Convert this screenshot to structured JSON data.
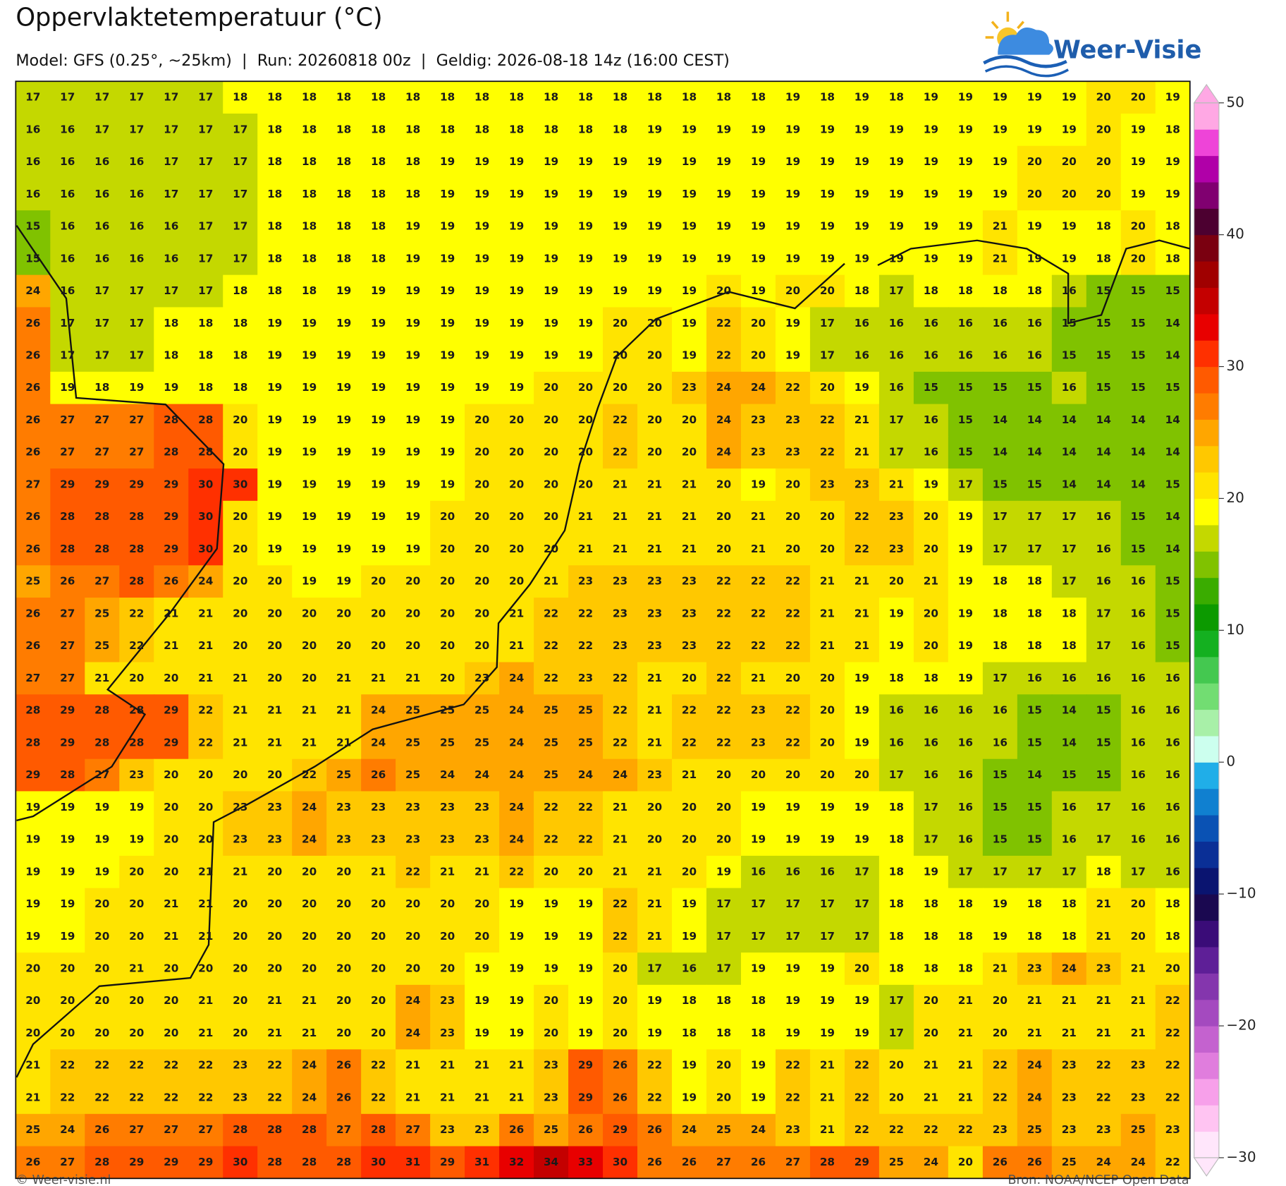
{
  "header": {
    "title": "Oppervlaktetemperatuur (°C)",
    "subtitle": "Model: GFS (0.25°, ~25km)  |  Run: 20260818 00z  |  Geldig: 2026-08-18 14z (16:00 CEST)",
    "logo": "Weer-Visie"
  },
  "footer": {
    "left": "© Weer-visie.nl",
    "right": "Bron: NOAA/NCEP Open Data"
  },
  "colorbar": {
    "lim": [
      -30,
      50
    ],
    "ticks": [
      50,
      40,
      30,
      20,
      10,
      0,
      {
        "value": -10,
        "label": "−10"
      },
      {
        "value": -20,
        "label": "−20"
      },
      {
        "value": -30,
        "label": "−30"
      }
    ],
    "colors": [
      "#ffe6fb",
      "#ffc4f2",
      "#f7a0ea",
      "#e07ddd",
      "#c462cf",
      "#a44abf",
      "#8436ad",
      "#5e1f97",
      "#3a0c78",
      "#1a0850",
      "#0a1470",
      "#0a2f96",
      "#0a52b4",
      "#1080d0",
      "#20aee8",
      "#ccffee",
      "#a8f0a8",
      "#72dd72",
      "#44c850",
      "#14b020",
      "#0c9a00",
      "#3aac00",
      "#80c200",
      "#c4d800",
      "#ffff00",
      "#ffe400",
      "#ffc800",
      "#ffa600",
      "#ff7c00",
      "#ff5a00",
      "#ff3000",
      "#e80000",
      "#c40000",
      "#a00000",
      "#7a0010",
      "#4c0030",
      "#800070",
      "#b000a8",
      "#ee44d8",
      "#ffa8e4"
    ]
  },
  "grid": {
    "rows": [
      [
        17,
        17,
        17,
        17,
        17,
        17,
        18,
        18,
        18,
        18,
        18,
        18,
        18,
        18,
        18,
        18,
        18,
        18,
        18,
        18,
        18,
        18,
        19,
        18,
        19,
        18,
        19,
        19,
        19,
        19,
        19,
        20,
        20,
        19
      ],
      [
        16,
        16,
        17,
        17,
        17,
        17,
        17,
        18,
        18,
        18,
        18,
        18,
        18,
        18,
        18,
        18,
        18,
        18,
        19,
        19,
        19,
        19,
        19,
        19,
        19,
        19,
        19,
        19,
        19,
        19,
        19,
        20,
        19,
        18
      ],
      [
        16,
        16,
        16,
        16,
        17,
        17,
        17,
        18,
        18,
        18,
        18,
        18,
        19,
        19,
        19,
        19,
        19,
        19,
        19,
        19,
        19,
        19,
        19,
        19,
        19,
        19,
        19,
        19,
        19,
        20,
        20,
        20,
        19,
        19
      ],
      [
        16,
        16,
        16,
        16,
        17,
        17,
        17,
        18,
        18,
        18,
        18,
        18,
        19,
        19,
        19,
        19,
        19,
        19,
        19,
        19,
        19,
        19,
        19,
        19,
        19,
        19,
        19,
        19,
        19,
        20,
        20,
        20,
        19,
        19
      ],
      [
        15,
        16,
        16,
        16,
        16,
        17,
        17,
        18,
        18,
        18,
        18,
        19,
        19,
        19,
        19,
        19,
        19,
        19,
        19,
        19,
        19,
        19,
        19,
        19,
        19,
        19,
        19,
        19,
        21,
        19,
        19,
        18,
        20,
        18
      ],
      [
        15,
        16,
        16,
        16,
        16,
        17,
        17,
        18,
        18,
        18,
        18,
        19,
        19,
        19,
        19,
        19,
        19,
        19,
        19,
        19,
        19,
        19,
        19,
        19,
        19,
        19,
        19,
        19,
        21,
        19,
        19,
        18,
        20,
        18
      ],
      [
        24,
        16,
        17,
        17,
        17,
        17,
        18,
        18,
        18,
        19,
        19,
        19,
        19,
        19,
        19,
        19,
        19,
        19,
        19,
        19,
        20,
        19,
        20,
        20,
        18,
        17,
        18,
        18,
        18,
        18,
        16,
        15,
        15,
        15
      ],
      [
        26,
        17,
        17,
        17,
        18,
        18,
        18,
        19,
        19,
        19,
        19,
        19,
        19,
        19,
        19,
        19,
        19,
        20,
        20,
        19,
        22,
        20,
        19,
        17,
        16,
        16,
        16,
        16,
        16,
        16,
        15,
        15,
        15,
        14
      ],
      [
        26,
        17,
        17,
        17,
        18,
        18,
        18,
        19,
        19,
        19,
        19,
        19,
        19,
        19,
        19,
        19,
        19,
        20,
        20,
        19,
        22,
        20,
        19,
        17,
        16,
        16,
        16,
        16,
        16,
        16,
        15,
        15,
        15,
        14
      ],
      [
        26,
        19,
        18,
        19,
        19,
        18,
        18,
        19,
        19,
        19,
        19,
        19,
        19,
        19,
        19,
        20,
        20,
        20,
        20,
        23,
        24,
        24,
        22,
        20,
        19,
        16,
        15,
        15,
        15,
        15,
        16,
        15,
        15,
        15
      ],
      [
        26,
        27,
        27,
        27,
        28,
        28,
        20,
        19,
        19,
        19,
        19,
        19,
        19,
        20,
        20,
        20,
        20,
        22,
        20,
        20,
        24,
        23,
        23,
        22,
        21,
        17,
        16,
        15,
        14,
        14,
        14,
        14,
        14,
        14
      ],
      [
        26,
        27,
        27,
        27,
        28,
        28,
        20,
        19,
        19,
        19,
        19,
        19,
        19,
        20,
        20,
        20,
        20,
        22,
        20,
        20,
        24,
        23,
        23,
        22,
        21,
        17,
        16,
        15,
        14,
        14,
        14,
        14,
        14,
        14
      ],
      [
        27,
        29,
        29,
        29,
        29,
        30,
        30,
        19,
        19,
        19,
        19,
        19,
        19,
        20,
        20,
        20,
        20,
        21,
        21,
        21,
        20,
        19,
        20,
        23,
        23,
        21,
        19,
        17,
        15,
        15,
        14,
        14,
        14,
        15
      ],
      [
        26,
        28,
        28,
        28,
        29,
        30,
        20,
        19,
        19,
        19,
        19,
        19,
        20,
        20,
        20,
        20,
        21,
        21,
        21,
        21,
        20,
        21,
        20,
        20,
        22,
        23,
        20,
        19,
        17,
        17,
        17,
        16,
        15,
        14
      ],
      [
        26,
        28,
        28,
        28,
        29,
        30,
        20,
        19,
        19,
        19,
        19,
        19,
        20,
        20,
        20,
        20,
        21,
        21,
        21,
        21,
        20,
        21,
        20,
        20,
        22,
        23,
        20,
        19,
        17,
        17,
        17,
        16,
        15,
        14
      ],
      [
        25,
        26,
        27,
        28,
        26,
        24,
        20,
        20,
        19,
        19,
        20,
        20,
        20,
        20,
        20,
        21,
        23,
        23,
        23,
        23,
        22,
        22,
        22,
        21,
        21,
        20,
        21,
        19,
        18,
        18,
        17,
        16,
        16,
        15
      ],
      [
        26,
        27,
        25,
        22,
        21,
        21,
        20,
        20,
        20,
        20,
        20,
        20,
        20,
        20,
        21,
        22,
        22,
        23,
        23,
        23,
        22,
        22,
        22,
        21,
        21,
        19,
        20,
        19,
        18,
        18,
        18,
        17,
        16,
        15
      ],
      [
        26,
        27,
        25,
        22,
        21,
        21,
        20,
        20,
        20,
        20,
        20,
        20,
        20,
        20,
        21,
        22,
        22,
        23,
        23,
        23,
        22,
        22,
        22,
        21,
        21,
        19,
        20,
        19,
        18,
        18,
        18,
        17,
        16,
        15
      ],
      [
        27,
        27,
        21,
        20,
        20,
        21,
        21,
        20,
        20,
        21,
        21,
        21,
        20,
        23,
        24,
        22,
        23,
        22,
        21,
        20,
        22,
        21,
        20,
        20,
        19,
        18,
        18,
        19,
        17,
        16,
        16,
        16,
        16,
        16
      ],
      [
        28,
        29,
        28,
        28,
        29,
        22,
        21,
        21,
        21,
        21,
        24,
        25,
        25,
        25,
        24,
        25,
        25,
        22,
        21,
        22,
        22,
        23,
        22,
        20,
        19,
        16,
        16,
        16,
        16,
        15,
        14,
        15,
        16,
        16
      ],
      [
        28,
        29,
        28,
        28,
        29,
        22,
        21,
        21,
        21,
        21,
        24,
        25,
        25,
        25,
        24,
        25,
        25,
        22,
        21,
        22,
        22,
        23,
        22,
        20,
        19,
        16,
        16,
        16,
        16,
        15,
        14,
        15,
        16,
        16
      ],
      [
        29,
        28,
        27,
        23,
        20,
        20,
        20,
        20,
        22,
        25,
        26,
        25,
        24,
        24,
        24,
        25,
        24,
        24,
        23,
        21,
        20,
        20,
        20,
        20,
        20,
        17,
        16,
        16,
        15,
        14,
        15,
        15,
        16,
        16
      ],
      [
        19,
        19,
        19,
        19,
        20,
        20,
        23,
        23,
        24,
        23,
        23,
        23,
        23,
        23,
        24,
        22,
        22,
        21,
        20,
        20,
        20,
        19,
        19,
        19,
        19,
        18,
        17,
        16,
        15,
        15,
        16,
        17,
        16,
        16
      ],
      [
        19,
        19,
        19,
        19,
        20,
        20,
        23,
        23,
        24,
        23,
        23,
        23,
        23,
        23,
        24,
        22,
        22,
        21,
        20,
        20,
        20,
        19,
        19,
        19,
        19,
        18,
        17,
        16,
        15,
        15,
        16,
        17,
        16,
        16
      ],
      [
        19,
        19,
        19,
        20,
        20,
        21,
        21,
        20,
        20,
        20,
        21,
        22,
        21,
        21,
        22,
        20,
        20,
        21,
        21,
        20,
        19,
        16,
        16,
        16,
        17,
        18,
        19,
        17,
        17,
        17,
        17,
        18,
        17,
        16
      ],
      [
        19,
        19,
        20,
        20,
        21,
        21,
        20,
        20,
        20,
        20,
        20,
        20,
        20,
        20,
        19,
        19,
        19,
        22,
        21,
        19,
        17,
        17,
        17,
        17,
        17,
        18,
        18,
        18,
        19,
        18,
        18,
        21,
        20,
        18
      ],
      [
        19,
        19,
        20,
        20,
        21,
        21,
        20,
        20,
        20,
        20,
        20,
        20,
        20,
        20,
        19,
        19,
        19,
        22,
        21,
        19,
        17,
        17,
        17,
        17,
        17,
        18,
        18,
        18,
        19,
        18,
        18,
        21,
        20,
        18
      ],
      [
        20,
        20,
        20,
        21,
        20,
        20,
        20,
        20,
        20,
        20,
        20,
        20,
        20,
        19,
        19,
        19,
        19,
        20,
        17,
        16,
        17,
        19,
        19,
        19,
        20,
        18,
        18,
        18,
        21,
        23,
        24,
        23,
        21,
        20
      ],
      [
        20,
        20,
        20,
        20,
        20,
        21,
        20,
        21,
        21,
        20,
        20,
        24,
        23,
        19,
        19,
        20,
        19,
        20,
        19,
        18,
        18,
        18,
        19,
        19,
        19,
        17,
        20,
        21,
        20,
        21,
        21,
        21,
        21,
        22
      ],
      [
        20,
        20,
        20,
        20,
        20,
        21,
        20,
        21,
        21,
        20,
        20,
        24,
        23,
        19,
        19,
        20,
        19,
        20,
        19,
        18,
        18,
        18,
        19,
        19,
        19,
        17,
        20,
        21,
        20,
        21,
        21,
        21,
        21,
        22
      ],
      [
        21,
        22,
        22,
        22,
        22,
        22,
        23,
        22,
        24,
        26,
        22,
        21,
        21,
        21,
        21,
        23,
        29,
        26,
        22,
        19,
        20,
        19,
        22,
        21,
        22,
        20,
        21,
        21,
        22,
        24,
        23,
        22,
        23,
        22
      ],
      [
        21,
        22,
        22,
        22,
        22,
        22,
        23,
        22,
        24,
        26,
        22,
        21,
        21,
        21,
        21,
        23,
        29,
        26,
        22,
        19,
        20,
        19,
        22,
        21,
        22,
        20,
        21,
        21,
        22,
        24,
        23,
        22,
        23,
        22
      ],
      [
        25,
        24,
        26,
        27,
        27,
        27,
        28,
        28,
        28,
        27,
        28,
        27,
        23,
        23,
        26,
        25,
        26,
        29,
        26,
        24,
        25,
        24,
        23,
        21,
        22,
        22,
        22,
        22,
        23,
        25,
        23,
        23,
        25,
        23
      ],
      [
        26,
        27,
        28,
        29,
        29,
        29,
        30,
        28,
        28,
        28,
        30,
        31,
        29,
        31,
        32,
        34,
        33,
        30,
        26,
        26,
        27,
        26,
        27,
        28,
        29,
        25,
        24,
        20,
        26,
        26,
        25,
        24,
        24,
        22
      ]
    ]
  }
}
